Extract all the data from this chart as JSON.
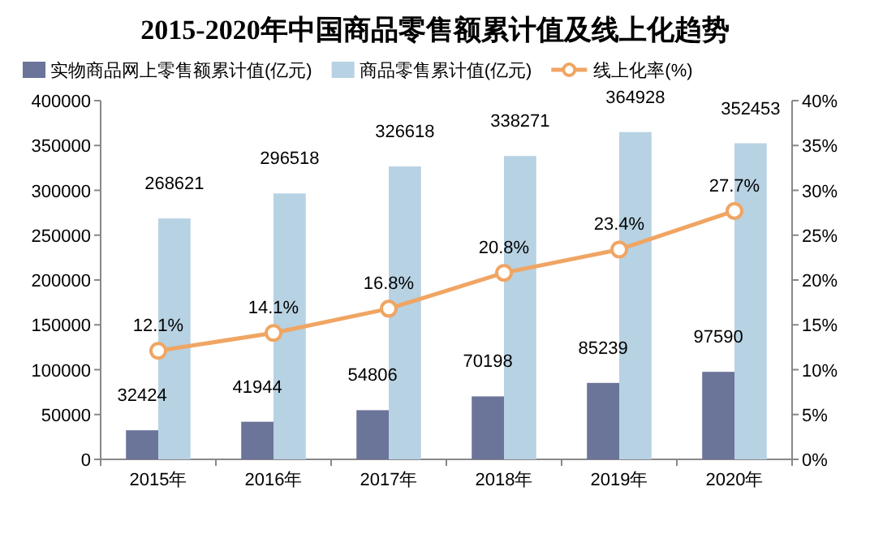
{
  "chart_data": {
    "type": "bar",
    "title": "2015-2020年中国商品零售额累计值及线上化趋势",
    "categories": [
      "2015年",
      "2016年",
      "2017年",
      "2018年",
      "2019年",
      "2020年"
    ],
    "series": [
      {
        "name": "实物商品网上零售额累计值(亿元)",
        "color": "#6b7499",
        "values": [
          32424,
          41944,
          54806,
          70198,
          85239,
          97590
        ],
        "value_labels": [
          "32424",
          "41944",
          "54806",
          "70198",
          "85239",
          "97590"
        ]
      },
      {
        "name": "商品零售累计值(亿元)",
        "color": "#b7d2e3",
        "values": [
          268621,
          296518,
          326618,
          338271,
          364928,
          352453
        ],
        "value_labels": [
          "268621",
          "296518",
          "326618",
          "338271",
          "364928",
          "352453"
        ]
      },
      {
        "name": "线上化率(%)",
        "type": "line",
        "axis": "y2",
        "marker": "circle",
        "color": "#f0a563",
        "values": [
          12.1,
          14.1,
          16.8,
          20.8,
          23.4,
          27.7
        ],
        "value_labels": [
          "12.1%",
          "14.1%",
          "16.8%",
          "20.8%",
          "23.4%",
          "27.7%"
        ]
      }
    ],
    "ylim": [
      0,
      400000
    ],
    "yticks": [
      0,
      50000,
      100000,
      150000,
      200000,
      250000,
      300000,
      350000,
      400000
    ],
    "y2lim": [
      0,
      40
    ],
    "y2ticks": [
      {
        "value": 0,
        "label": "0%"
      },
      {
        "value": 5,
        "label": "5%"
      },
      {
        "value": 10,
        "label": "10%"
      },
      {
        "value": 15,
        "label": "15%"
      },
      {
        "value": 20,
        "label": "20%"
      },
      {
        "value": 25,
        "label": "25%"
      },
      {
        "value": 30,
        "label": "30%"
      },
      {
        "value": 35,
        "label": "35%"
      },
      {
        "value": 40,
        "label": "40%"
      }
    ],
    "legend": "top",
    "grid": false
  }
}
